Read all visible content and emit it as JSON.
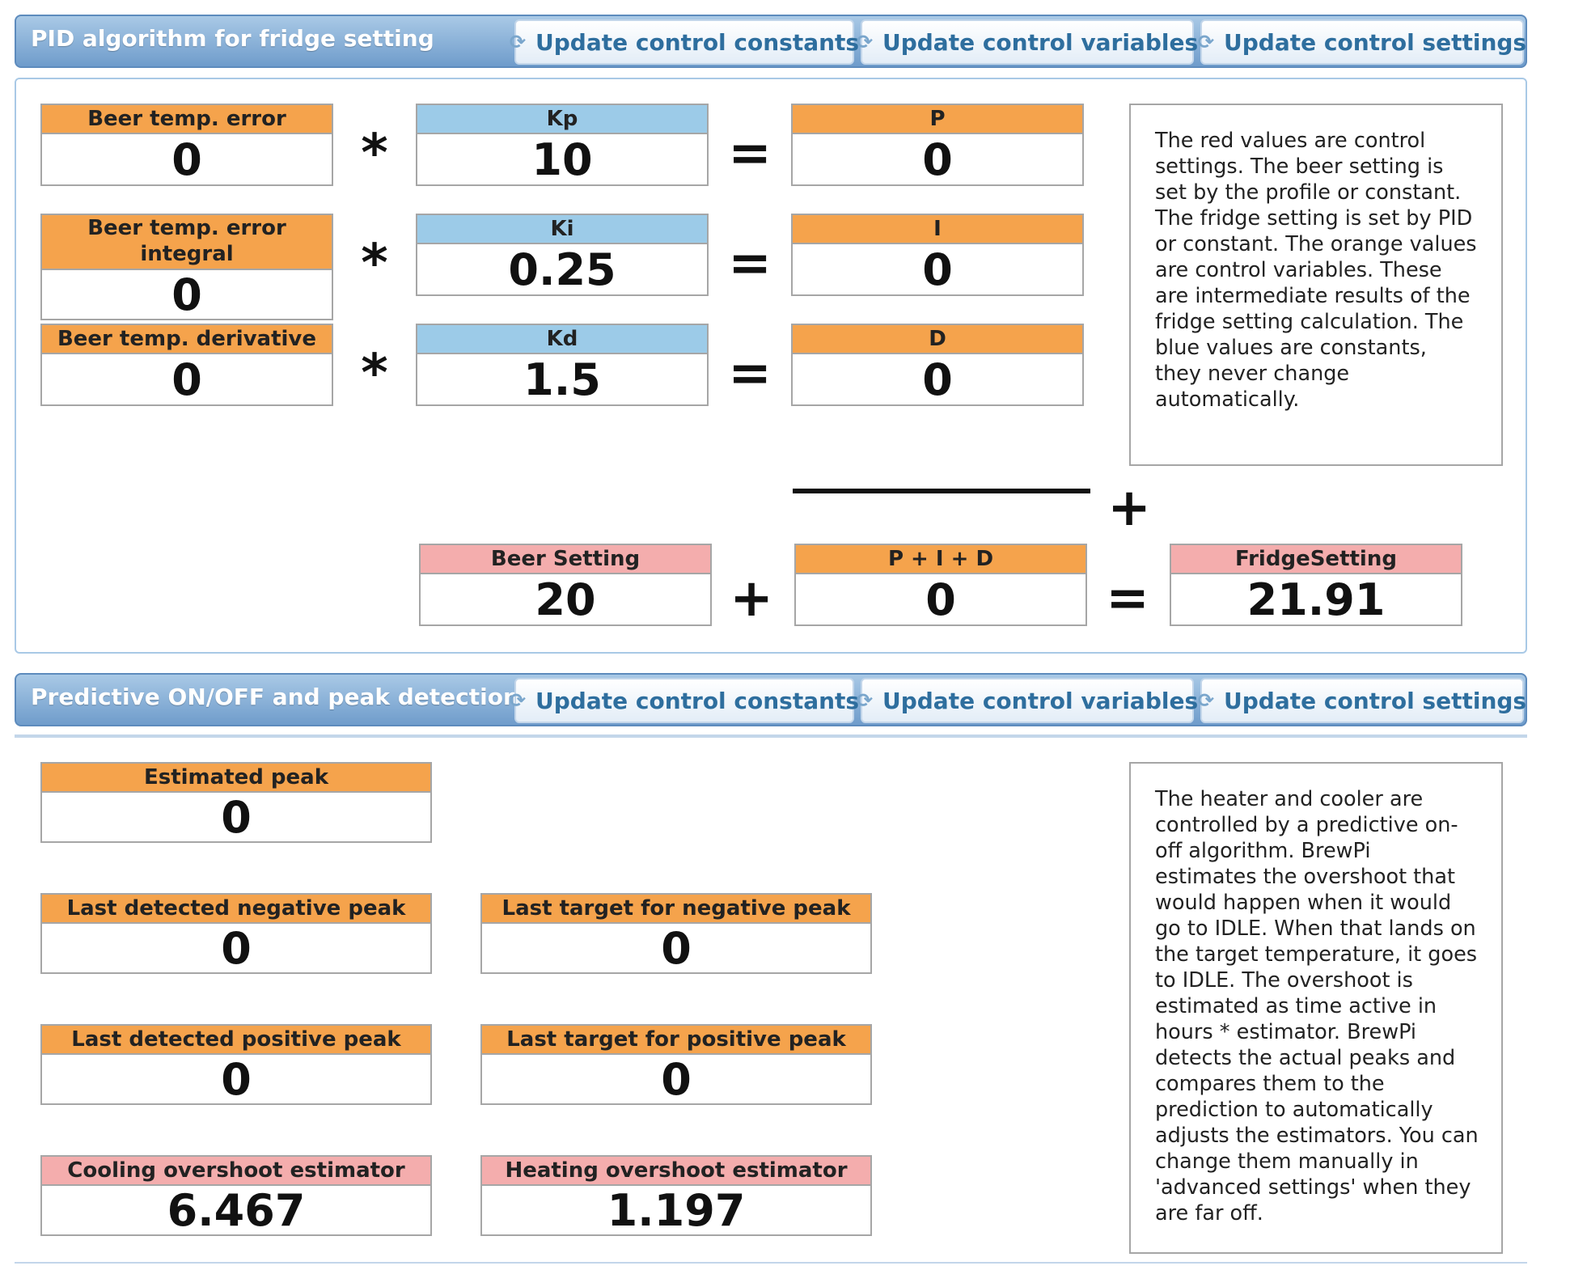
{
  "pid_section": {
    "title": "PID algorithm for fridge setting",
    "buttons": {
      "constants": "Update control constants",
      "variables": "Update control variables",
      "settings": "Update control settings"
    },
    "rows": {
      "error": {
        "label": "Beer temp. error",
        "value": "0"
      },
      "integral": {
        "label": "Beer temp. error integral",
        "value": "0"
      },
      "derivative": {
        "label": "Beer temp. derivative",
        "value": "0"
      },
      "kp": {
        "label": "Kp",
        "value": "10"
      },
      "ki": {
        "label": "Ki",
        "value": "0.25"
      },
      "kd": {
        "label": "Kd",
        "value": "1.5"
      },
      "p": {
        "label": "P",
        "value": "0"
      },
      "i": {
        "label": "I",
        "value": "0"
      },
      "d": {
        "label": "D",
        "value": "0"
      }
    },
    "beer_setting": {
      "label": "Beer Setting",
      "value": "20"
    },
    "pid_sum": {
      "label": "P + I + D",
      "value": "0"
    },
    "fridge_setting": {
      "label": "FridgeSetting",
      "value": "21.91"
    },
    "operators": {
      "multiply": "*",
      "equals": "=",
      "plus": "+"
    },
    "info": "The red values are control settings. The beer setting is set by the profile or constant. The fridge setting is set by PID or constant. The orange values are control variables. These are intermediate results of the fridge setting calculation. The blue values are constants, they never change automatically."
  },
  "peak_section": {
    "title": "Predictive ON/OFF and peak detection",
    "buttons": {
      "constants": "Update control constants",
      "variables": "Update control variables",
      "settings": "Update control settings"
    },
    "estimated_peak": {
      "label": "Estimated peak",
      "value": "0"
    },
    "neg_peak": {
      "label": "Last detected negative peak",
      "value": "0"
    },
    "neg_target": {
      "label": "Last target for negative peak",
      "value": "0"
    },
    "pos_peak": {
      "label": "Last detected positive peak",
      "value": "0"
    },
    "pos_target": {
      "label": "Last target for positive peak",
      "value": "0"
    },
    "cool_est": {
      "label": "Cooling overshoot estimator",
      "value": "6.467"
    },
    "heat_est": {
      "label": "Heating overshoot estimator",
      "value": "1.197"
    },
    "info": "The heater and cooler are controlled by a predictive on-off algorithm. BrewPi estimates the overshoot that would happen when it would go to IDLE. When that lands on the target temperature, it goes to IDLE. The overshoot is estimated as time active in hours * estimator. BrewPi detects the actual peaks and compares them to the prediction to automatically adjusts the estimators. You can change them manually in 'advanced settings' when they are far off."
  },
  "icons": {
    "refresh": "refresh-icon"
  },
  "colors": {
    "variable": "#f5a34c",
    "constant": "#9ccbe8",
    "setting": "#f4adad",
    "header": "#6f9ccb"
  }
}
